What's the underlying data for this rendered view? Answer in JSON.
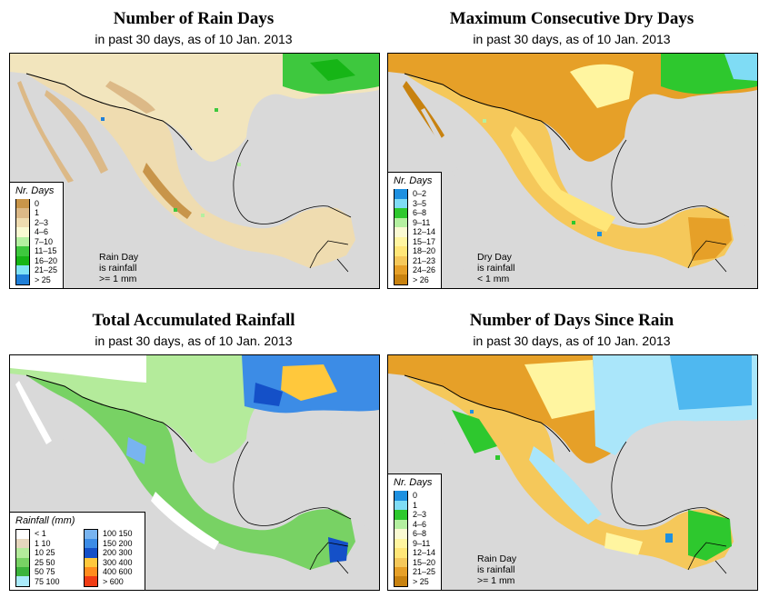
{
  "common_subtitle": "in past 30 days, as of  10 Jan. 2013",
  "panels": {
    "rain_days": {
      "title": "Number of Rain Days",
      "subtitle": "in past 30 days, as of  10 Jan. 2013",
      "legend_title": "Nr. Days",
      "legend": [
        {
          "label": "0",
          "color": "#c8954a"
        },
        {
          "label": "1",
          "color": "#dcb987"
        },
        {
          "label": "2–3",
          "color": "#efdcb0"
        },
        {
          "label": "4–6",
          "color": "#fafad2"
        },
        {
          "label": "7–10",
          "color": "#b4f0a0"
        },
        {
          "label": "11–15",
          "color": "#3ec83e"
        },
        {
          "label": "16–20",
          "color": "#16b516"
        },
        {
          "label": "21–25",
          "color": "#7fe3f5"
        },
        {
          "label": "> 25",
          "color": "#1f7fd8"
        }
      ],
      "note": [
        "Rain Day",
        "is rainfall",
        ">= 1 mm"
      ]
    },
    "dry_days": {
      "title": "Maximum Consecutive Dry Days",
      "subtitle": "in past 30 days, as of  10 Jan. 2013",
      "legend_title": "Nr. Days",
      "legend": [
        {
          "label": "0–2",
          "color": "#1e90e0"
        },
        {
          "label": "3–5",
          "color": "#7fdcf5"
        },
        {
          "label": "6–8",
          "color": "#2ec82e"
        },
        {
          "label": "9–11",
          "color": "#b4f0a0"
        },
        {
          "label": "12–14",
          "color": "#fafad2"
        },
        {
          "label": "15–17",
          "color": "#fff5a0"
        },
        {
          "label": "18–20",
          "color": "#ffe678"
        },
        {
          "label": "21–23",
          "color": "#f5c85a"
        },
        {
          "label": "24–26",
          "color": "#e6a028"
        },
        {
          "label": "> 26",
          "color": "#c8820f"
        }
      ],
      "note": [
        "Dry Day",
        "is rainfall",
        "< 1 mm"
      ]
    },
    "total_rain": {
      "title": "Total Accumulated Rainfall",
      "subtitle": "in past 30 days, as of  10 Jan. 2013",
      "legend_title": "Rainfall (mm)",
      "legend_left": [
        {
          "label": "< 1",
          "color": "#ffffff"
        },
        {
          "label": "1    10",
          "color": "#e6d7be"
        },
        {
          "label": "10    25",
          "color": "#b4eb9b"
        },
        {
          "label": "25    50",
          "color": "#78d264"
        },
        {
          "label": "50    75",
          "color": "#3cb43c"
        },
        {
          "label": "75   100",
          "color": "#aaebfa"
        }
      ],
      "legend_right": [
        {
          "label": "100  150",
          "color": "#78b4f0"
        },
        {
          "label": "150  200",
          "color": "#3c8ce6"
        },
        {
          "label": "200  300",
          "color": "#1450c8"
        },
        {
          "label": "300  400",
          "color": "#ffc83c"
        },
        {
          "label": "400  600",
          "color": "#ff8c1e"
        },
        {
          "label": "> 600",
          "color": "#f03c14"
        }
      ]
    },
    "since_rain": {
      "title": "Number of Days Since Rain",
      "subtitle": "in past 30 days, as of  10 Jan. 2013",
      "legend_title": "Nr. Days",
      "legend": [
        {
          "label": "0",
          "color": "#1e90e0"
        },
        {
          "label": "1",
          "color": "#7fdcf5"
        },
        {
          "label": "2–3",
          "color": "#2ec82e"
        },
        {
          "label": "4–6",
          "color": "#b4f0a0"
        },
        {
          "label": "6–8",
          "color": "#fafad2"
        },
        {
          "label": "9–11",
          "color": "#fff5a0"
        },
        {
          "label": "12–14",
          "color": "#ffe678"
        },
        {
          "label": "15–20",
          "color": "#f5c85a"
        },
        {
          "label": "21–25",
          "color": "#e6a028"
        },
        {
          "label": "> 25",
          "color": "#c8820f"
        }
      ],
      "note": [
        "Rain Day",
        "is rainfall",
        ">= 1 mm"
      ]
    }
  },
  "colors": {
    "ocean": "#d9d9d9",
    "border": "#000000"
  }
}
